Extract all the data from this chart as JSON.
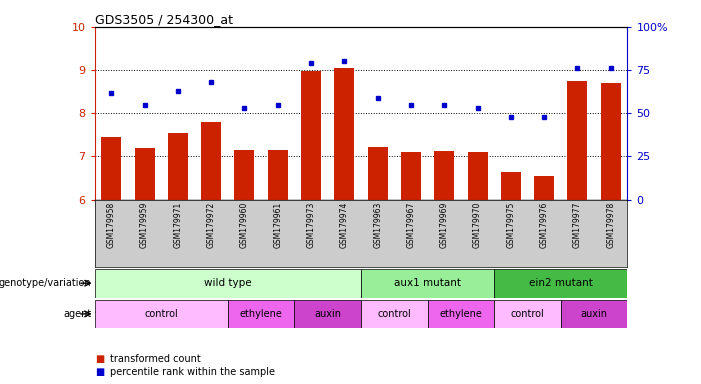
{
  "title": "GDS3505 / 254300_at",
  "samples": [
    "GSM179958",
    "GSM179959",
    "GSM179971",
    "GSM179972",
    "GSM179960",
    "GSM179961",
    "GSM179973",
    "GSM179974",
    "GSM179963",
    "GSM179967",
    "GSM179969",
    "GSM179970",
    "GSM179975",
    "GSM179976",
    "GSM179977",
    "GSM179978"
  ],
  "bar_values": [
    7.45,
    7.2,
    7.55,
    7.8,
    7.15,
    7.15,
    8.97,
    9.05,
    7.22,
    7.1,
    7.12,
    7.1,
    6.65,
    6.55,
    8.75,
    8.7
  ],
  "dot_values_pct": [
    62,
    55,
    63,
    68,
    53,
    55,
    79,
    80,
    59,
    55,
    55,
    53,
    48,
    48,
    76,
    76
  ],
  "ylim_left": [
    6,
    10
  ],
  "ylim_right": [
    0,
    100
  ],
  "yticks_left": [
    6,
    7,
    8,
    9,
    10
  ],
  "yticks_right": [
    0,
    25,
    50,
    75,
    100
  ],
  "ytick_labels_right": [
    "0",
    "25",
    "50",
    "75",
    "100%"
  ],
  "bar_color": "#cc2200",
  "dot_color": "#0000cc",
  "genotype_groups": [
    {
      "label": "wild type",
      "start": 0,
      "end": 8,
      "color": "#ccffcc"
    },
    {
      "label": "aux1 mutant",
      "start": 8,
      "end": 12,
      "color": "#99ee99"
    },
    {
      "label": "ein2 mutant",
      "start": 12,
      "end": 16,
      "color": "#44bb44"
    }
  ],
  "agent_groups": [
    {
      "label": "control",
      "start": 0,
      "end": 4,
      "color": "#ffbbff"
    },
    {
      "label": "ethylene",
      "start": 4,
      "end": 6,
      "color": "#ee66ee"
    },
    {
      "label": "auxin",
      "start": 6,
      "end": 8,
      "color": "#cc44cc"
    },
    {
      "label": "control",
      "start": 8,
      "end": 10,
      "color": "#ffbbff"
    },
    {
      "label": "ethylene",
      "start": 10,
      "end": 12,
      "color": "#ee66ee"
    },
    {
      "label": "control",
      "start": 12,
      "end": 14,
      "color": "#ffbbff"
    },
    {
      "label": "auxin",
      "start": 14,
      "end": 16,
      "color": "#cc44cc"
    }
  ],
  "legend_items": [
    {
      "label": "transformed count",
      "color": "#cc2200"
    },
    {
      "label": "percentile rank within the sample",
      "color": "#0000cc"
    }
  ],
  "label_genotype": "genotype/variation",
  "label_agent": "agent"
}
